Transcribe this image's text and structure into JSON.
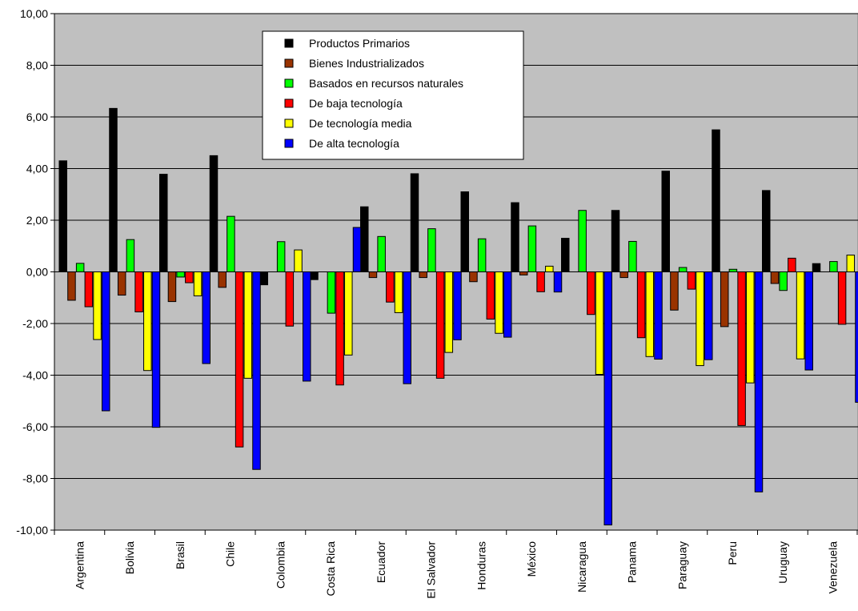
{
  "chart_data": {
    "type": "bar",
    "categories": [
      "Argentina",
      "Bolivia",
      "Brasil",
      "Chile",
      "Colombia",
      "Costa Rica",
      "Ecuador",
      "El Salvador",
      "Honduras",
      "México",
      "Nicaragua",
      "Panama",
      "Paraguay",
      "Peru",
      "Uruguay",
      "Venezuela"
    ],
    "ylim": [
      -10,
      10
    ],
    "yticks": [
      "10,00",
      "8,00",
      "6,00",
      "4,00",
      "2,00",
      "0,00",
      "-2,00",
      "-4,00",
      "-6,00",
      "-8,00",
      "-10,00"
    ],
    "grid": true,
    "legend_position": "top-center",
    "plot_background": "#c0c0c0",
    "series": [
      {
        "name": "Productos Primarios",
        "color": "#000000",
        "values": [
          4.3,
          6.33,
          3.78,
          4.5,
          -0.5,
          -0.3,
          2.52,
          3.8,
          3.1,
          2.68,
          1.3,
          2.38,
          3.9,
          5.5,
          3.15,
          0.32
        ]
      },
      {
        "name": "Bienes Industrializados",
        "color": "#993300",
        "values": [
          -1.1,
          -0.9,
          -1.15,
          -0.6,
          0.0,
          0.0,
          -0.22,
          -0.22,
          -0.38,
          -0.12,
          0.0,
          -0.22,
          -1.48,
          -2.12,
          -0.45,
          0.0
        ]
      },
      {
        "name": "Basados en recursos naturales",
        "color": "#00ff00",
        "values": [
          0.33,
          1.25,
          -0.2,
          2.15,
          1.17,
          -1.6,
          1.37,
          1.67,
          1.28,
          1.78,
          2.38,
          1.18,
          0.17,
          0.1,
          -0.72,
          0.4
        ]
      },
      {
        "name": "De baja tecnología",
        "color": "#ff0000",
        "values": [
          -1.35,
          -1.55,
          -0.42,
          -6.78,
          -2.1,
          -4.38,
          -1.17,
          -4.12,
          -1.83,
          -0.77,
          -1.65,
          -2.55,
          -0.67,
          -5.95,
          0.53,
          -2.03
        ]
      },
      {
        "name": "De tecnología media",
        "color": "#ffff00",
        "values": [
          -2.62,
          -3.82,
          -0.93,
          -4.12,
          0.85,
          -3.22,
          -1.58,
          -3.12,
          -2.38,
          0.22,
          -3.97,
          -3.28,
          -3.63,
          -4.3,
          -3.37,
          0.65
        ]
      },
      {
        "name": "De alta tecnología",
        "color": "#0000ff",
        "values": [
          -5.38,
          -6.02,
          -3.55,
          -7.65,
          -4.23,
          1.72,
          -4.33,
          -2.63,
          -2.53,
          -0.78,
          -9.8,
          -3.38,
          -3.4,
          -8.52,
          -3.8,
          -5.05
        ]
      }
    ]
  }
}
